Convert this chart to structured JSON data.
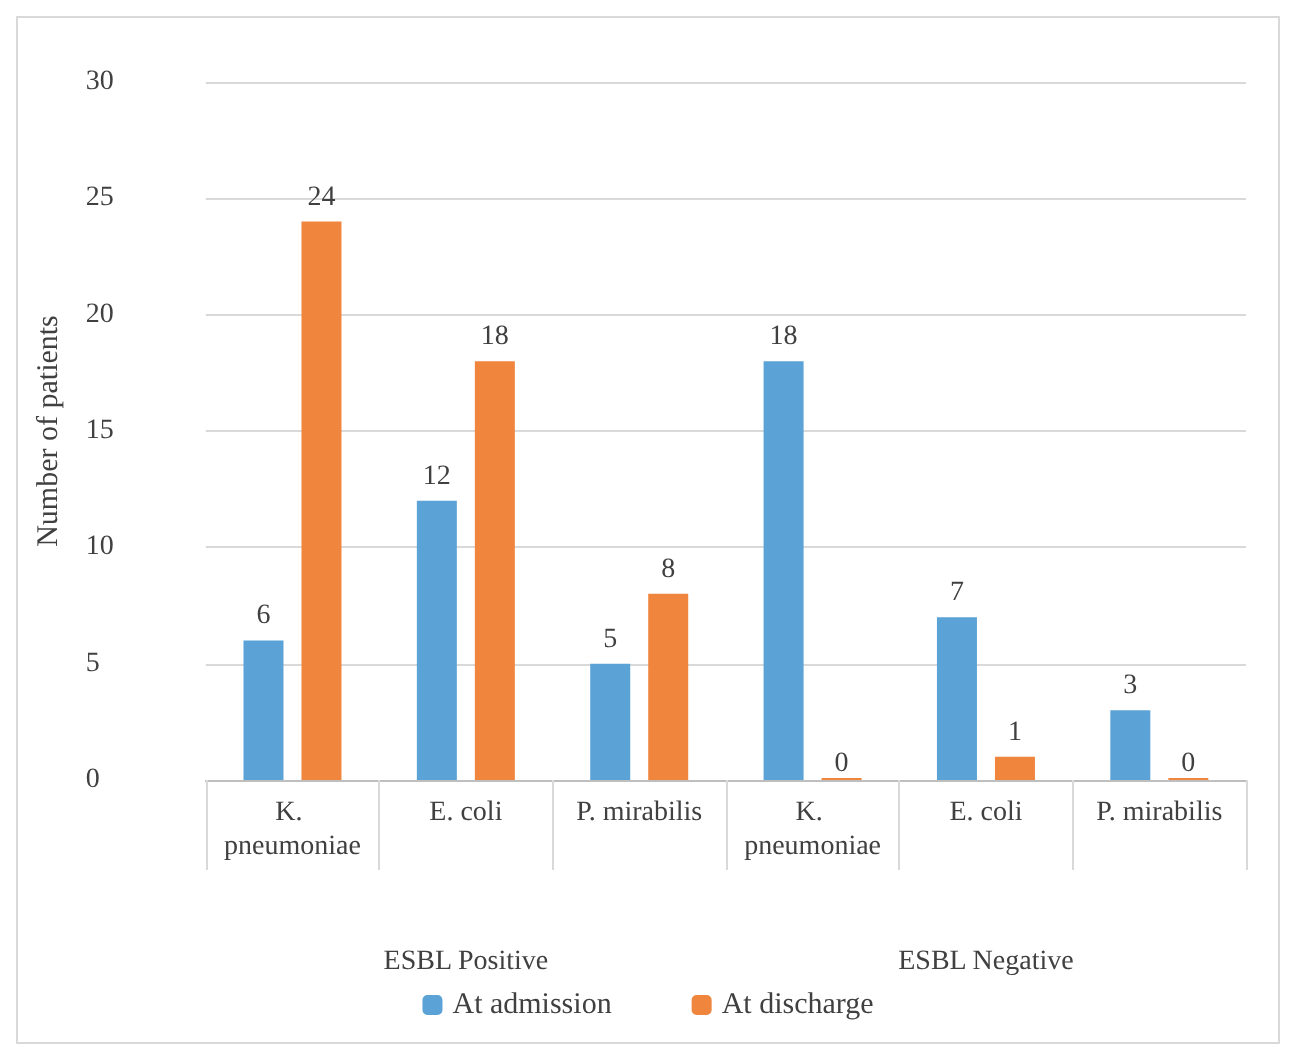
{
  "chart_data": {
    "type": "bar",
    "ylabel": "Number of patients",
    "categories": [
      "K. pneumoniae",
      "E. coli",
      "P. mirabilis",
      "K. pneumoniae",
      "E. coli",
      "P. mirabilis"
    ],
    "series": [
      {
        "name": "At admission",
        "color": "#5ba3d6",
        "values": [
          6,
          12,
          5,
          18,
          7,
          3
        ]
      },
      {
        "name": "At discharge",
        "color": "#f0853d",
        "values": [
          24,
          18,
          8,
          0,
          1,
          0
        ]
      }
    ],
    "ylim": [
      0,
      30
    ],
    "yticks": [
      0,
      5,
      10,
      15,
      20,
      25,
      30
    ],
    "grid": "y",
    "legend": "bottom",
    "data_labels": true,
    "annotations": [
      "ESBL Positive",
      "ESBL Negative"
    ]
  }
}
